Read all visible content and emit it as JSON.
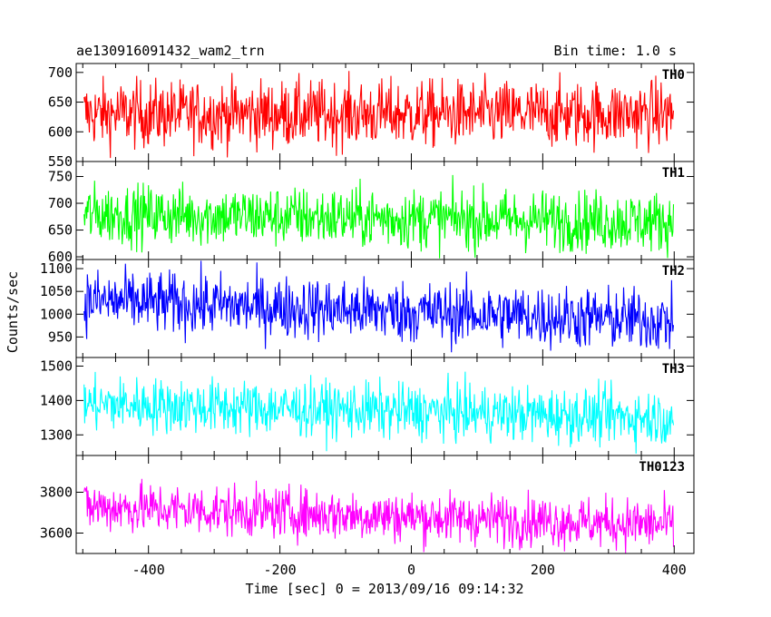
{
  "header": {
    "title": "ae130916091432_wam2_trn",
    "bin_time": "Bin time: 1.0 s"
  },
  "chart_data": {
    "type": "line",
    "title": "ae130916091432_wam2_trn",
    "subtitle": "Bin time: 1.0 s",
    "xlabel": "Time [sec] 0 = 2013/09/16 09:14:32",
    "ylabel": "Counts/sec",
    "xlim": [
      -510,
      430
    ],
    "x_ticks": [
      -400,
      -200,
      0,
      200,
      400
    ],
    "x_start": -498,
    "x_end": 399,
    "x_step": 1,
    "panels": [
      {
        "name": "TH0",
        "color": "#ff0000",
        "ylim": [
          550,
          715
        ],
        "y_ticks": [
          550,
          600,
          650,
          700
        ],
        "mean_start": 630,
        "mean_end": 630,
        "noise": 28
      },
      {
        "name": "TH1",
        "color": "#00ff00",
        "ylim": [
          595,
          778
        ],
        "y_ticks": [
          600,
          650,
          700,
          750
        ],
        "mean_start": 680,
        "mean_end": 665,
        "noise": 28
      },
      {
        "name": "TH2",
        "color": "#0000ff",
        "ylim": [
          905,
          1120
        ],
        "y_ticks": [
          950,
          1000,
          1050,
          1100
        ],
        "mean_start": 1030,
        "mean_end": 985,
        "noise": 34
      },
      {
        "name": "TH3",
        "color": "#00ffff",
        "ylim": [
          1240,
          1525
        ],
        "y_ticks": [
          1300,
          1400,
          1500
        ],
        "mean_start": 1390,
        "mean_end": 1350,
        "noise": 40
      },
      {
        "name": "TH0123",
        "color": "#ff00ff",
        "ylim": [
          3500,
          3980
        ],
        "y_ticks": [
          3600,
          3800
        ],
        "mean_start": 3730,
        "mean_end": 3640,
        "noise": 62
      }
    ]
  }
}
